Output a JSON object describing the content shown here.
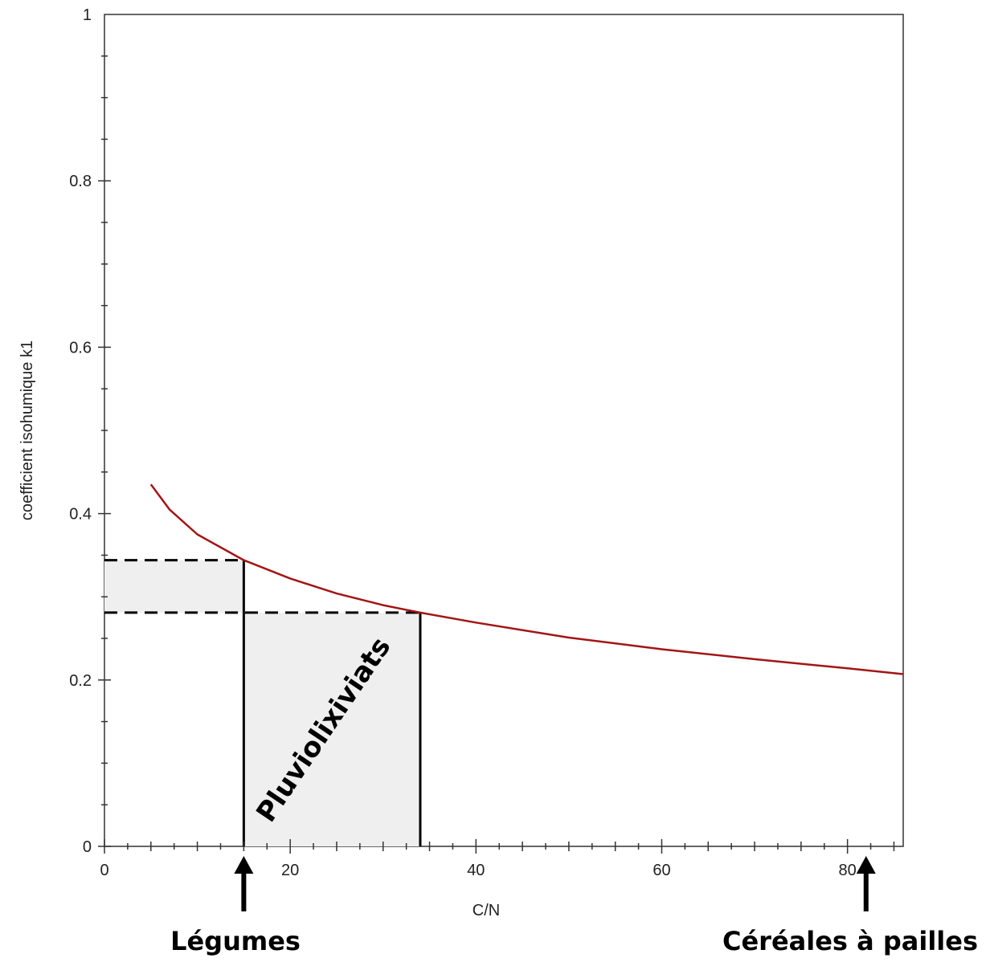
{
  "chart_data": {
    "type": "line",
    "xlabel": "C/N",
    "ylabel": "coefficient isohumique k1",
    "xlim": [
      0,
      86
    ],
    "ylim": [
      0,
      1
    ],
    "x_ticks": [
      0,
      20,
      40,
      60,
      80
    ],
    "y_ticks": [
      0,
      0.2,
      0.4,
      0.6,
      0.8,
      1
    ],
    "x_tick_labels": [
      "0",
      "20",
      "40",
      "60",
      "80"
    ],
    "y_tick_labels": [
      "0",
      "0.2",
      "0.4",
      "0.6",
      "0.8",
      "1"
    ],
    "grid": false,
    "series": [
      {
        "color": "#a31515",
        "x": [
          5,
          7,
          10,
          15,
          20,
          25,
          30,
          34,
          40,
          50,
          60,
          70,
          80,
          86
        ],
        "y": [
          0.435,
          0.405,
          0.375,
          0.344,
          0.322,
          0.304,
          0.29,
          0.281,
          0.269,
          0.251,
          0.237,
          0.225,
          0.214,
          0.207
        ]
      }
    ],
    "shaded_region": {
      "x_range": [
        15,
        34
      ],
      "y_range": [
        0.281,
        0.344
      ],
      "fill": "#efefef"
    },
    "reference_lines": {
      "vertical_x": [
        15,
        34
      ],
      "horizontal_dashed_y": [
        0.344,
        0.281
      ]
    },
    "annotations": {
      "region_label": "Pluviolixiviats",
      "arrow_left_label": "Légumes",
      "arrow_left_x": 15,
      "arrow_right_label": "Céréales à pailles",
      "arrow_right_x": 82
    }
  }
}
